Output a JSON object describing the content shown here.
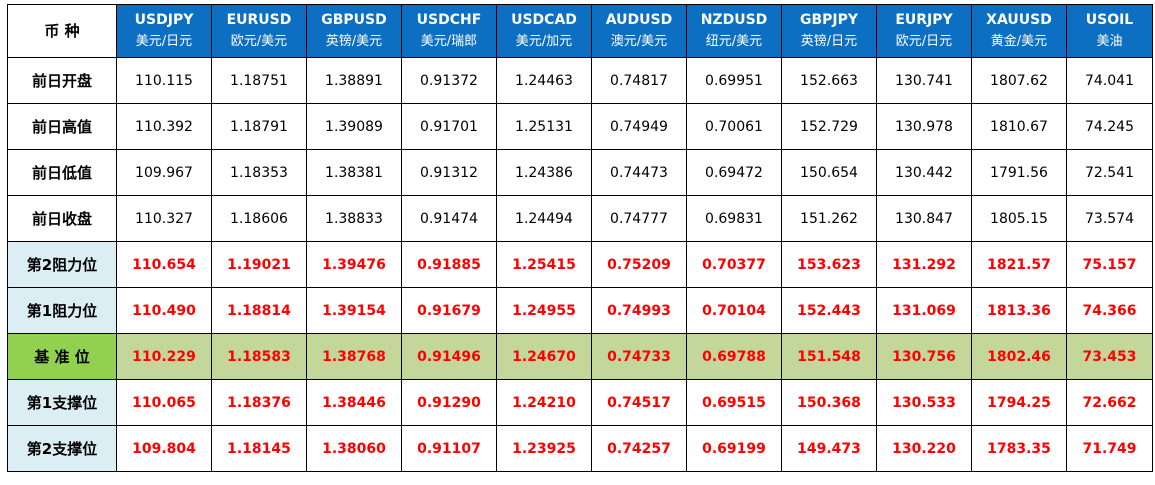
{
  "table": {
    "corner": "币 种",
    "columns": [
      {
        "code": "USDJPY",
        "name": "美元/日元"
      },
      {
        "code": "EURUSD",
        "name": "欧元/美元"
      },
      {
        "code": "GBPUSD",
        "name": "英镑/美元"
      },
      {
        "code": "USDCHF",
        "name": "美元/瑞郎"
      },
      {
        "code": "USDCAD",
        "name": "美元/加元"
      },
      {
        "code": "AUDUSD",
        "name": "澳元/美元"
      },
      {
        "code": "NZDUSD",
        "name": "纽元/美元"
      },
      {
        "code": "GBPJPY",
        "name": "英镑/日元"
      },
      {
        "code": "EURJPY",
        "name": "欧元/日元"
      },
      {
        "code": "XAUUSD",
        "name": "黄金/美元"
      },
      {
        "code": "USOIL",
        "name": "美油"
      }
    ],
    "rows": [
      {
        "label": "前日开盘",
        "values": [
          "110.115",
          "1.18751",
          "1.38891",
          "0.91372",
          "1.24463",
          "0.74817",
          "0.69951",
          "152.663",
          "130.741",
          "1807.62",
          "74.041"
        ]
      },
      {
        "label": "前日高值",
        "values": [
          "110.392",
          "1.18791",
          "1.39089",
          "0.91701",
          "1.25131",
          "0.74949",
          "0.70061",
          "152.729",
          "130.978",
          "1810.67",
          "74.245"
        ]
      },
      {
        "label": "前日低值",
        "values": [
          "109.967",
          "1.18353",
          "1.38381",
          "0.91312",
          "1.24386",
          "0.74473",
          "0.69472",
          "150.654",
          "130.442",
          "1791.56",
          "72.541"
        ]
      },
      {
        "label": "前日收盘",
        "values": [
          "110.327",
          "1.18606",
          "1.38833",
          "0.91474",
          "1.24494",
          "0.74777",
          "0.69831",
          "151.262",
          "130.847",
          "1805.15",
          "73.574"
        ]
      },
      {
        "label": "第2阻力位",
        "values": [
          "110.654",
          "1.19021",
          "1.39476",
          "0.91885",
          "1.25415",
          "0.75209",
          "0.70377",
          "153.623",
          "131.292",
          "1821.57",
          "75.157"
        ]
      },
      {
        "label": "第1阻力位",
        "values": [
          "110.490",
          "1.18814",
          "1.39154",
          "0.91679",
          "1.24955",
          "0.74993",
          "0.70104",
          "152.443",
          "131.069",
          "1813.36",
          "74.366"
        ]
      },
      {
        "label": "基 准 位",
        "values": [
          "110.229",
          "1.18583",
          "1.38768",
          "0.91496",
          "1.24670",
          "0.74733",
          "0.69788",
          "151.548",
          "130.756",
          "1802.46",
          "73.453"
        ]
      },
      {
        "label": "第1支撑位",
        "values": [
          "110.065",
          "1.18376",
          "1.38446",
          "0.91290",
          "1.24210",
          "0.74517",
          "0.69515",
          "150.368",
          "130.533",
          "1794.25",
          "72.662"
        ]
      },
      {
        "label": "第2支撑位",
        "values": [
          "109.804",
          "1.18145",
          "1.38060",
          "0.91107",
          "1.23925",
          "0.74257",
          "0.69199",
          "149.473",
          "130.220",
          "1783.35",
          "71.749"
        ]
      }
    ]
  }
}
